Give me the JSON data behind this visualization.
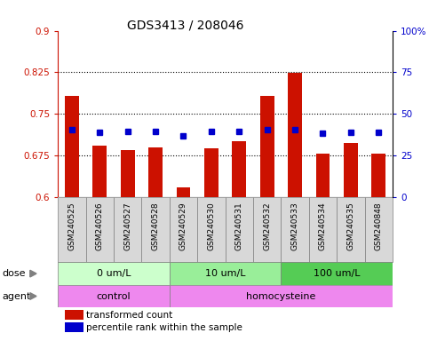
{
  "title": "GDS3413 / 208046",
  "samples": [
    "GSM240525",
    "GSM240526",
    "GSM240527",
    "GSM240528",
    "GSM240529",
    "GSM240530",
    "GSM240531",
    "GSM240532",
    "GSM240533",
    "GSM240534",
    "GSM240535",
    "GSM240848"
  ],
  "red_values": [
    0.782,
    0.693,
    0.685,
    0.69,
    0.617,
    0.688,
    0.7,
    0.782,
    0.824,
    0.678,
    0.698,
    0.678
  ],
  "blue_values": [
    0.722,
    0.716,
    0.718,
    0.718,
    0.71,
    0.718,
    0.718,
    0.722,
    0.722,
    0.715,
    0.716,
    0.716
  ],
  "ylim_left": [
    0.6,
    0.9
  ],
  "ylim_right": [
    0,
    100
  ],
  "yticks_left": [
    0.6,
    0.675,
    0.75,
    0.825,
    0.9
  ],
  "yticks_right": [
    0,
    25,
    50,
    75,
    100
  ],
  "ytick_labels_left": [
    "0.6",
    "0.675",
    "0.75",
    "0.825",
    "0.9"
  ],
  "ytick_labels_right": [
    "0",
    "25",
    "50",
    "75",
    "100%"
  ],
  "hlines": [
    0.675,
    0.75,
    0.825
  ],
  "red_color": "#CC1100",
  "blue_color": "#0000CC",
  "bar_bottom": 0.6,
  "dose_labels": [
    "0 um/L",
    "10 um/L",
    "100 um/L"
  ],
  "dose_ranges": [
    [
      0,
      4
    ],
    [
      4,
      8
    ],
    [
      8,
      12
    ]
  ],
  "dose_colors": [
    "#ccffcc",
    "#99ee99",
    "#55cc55"
  ],
  "agent_labels": [
    "control",
    "homocysteine"
  ],
  "agent_ranges": [
    [
      0,
      4
    ],
    [
      4,
      12
    ]
  ],
  "agent_color": "#ee88ee",
  "legend_red": "transformed count",
  "legend_blue": "percentile rank within the sample",
  "bg_color": "#d8d8d8",
  "bar_width": 0.5
}
